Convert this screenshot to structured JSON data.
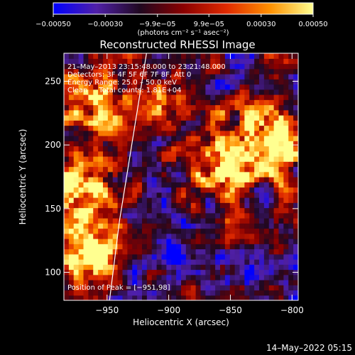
{
  "chart_data": {
    "type": "heatmap",
    "title": "Reconstructed RHESSI Image",
    "xlabel": "Heliocentric X (arcsec)",
    "ylabel": "Heliocentric Y (arcsec)",
    "xlim": [
      -985,
      -795
    ],
    "ylim": [
      78,
      272
    ],
    "x_ticks": [
      -950,
      -900,
      -850,
      -800
    ],
    "x_tick_labels": [
      "−950",
      "−900",
      "−850",
      "−800"
    ],
    "y_ticks": [
      100,
      150,
      200,
      250
    ],
    "y_tick_labels": [
      "100",
      "150",
      "200",
      "250"
    ],
    "colorbar": {
      "vmin": -0.0005,
      "vmax": 0.0005,
      "ticks": [
        -0.0005,
        -0.0003,
        -9.9e-05,
        9.9e-05,
        0.0003,
        0.0005
      ],
      "tick_labels": [
        "−0.00050",
        "−0.00030",
        "−9.9e−05",
        "9.9e−05",
        "0.00030",
        "0.00050"
      ],
      "unit_label": "(photons cm⁻² s⁻¹ asec⁻²)",
      "colors": [
        "#0000ff",
        "#5020a8",
        "#200820",
        "#8a0000",
        "#e02a00",
        "#ff9000",
        "#ffff90"
      ]
    },
    "annotations": [
      "21–May–2013 23:15:48.000 to 23:21:48.000",
      "Detectors: 3F 4F 5F 6F 7F 8F, Att 0",
      "Energy Range: 25.0 – 50.0 keV",
      "Clean     Total counts: 1.81E+04"
    ],
    "peak_label": "Position of Peak = [−951,98]",
    "peak_position": [
      -951,
      98
    ],
    "limb_curve": [
      [
        -948,
        78
      ],
      [
        -940,
        140
      ],
      [
        -930,
        200
      ],
      [
        -918,
        272
      ]
    ],
    "grid": false,
    "bright_sources": [
      {
        "x": -962,
        "y": 112,
        "sigma": 14,
        "amp": 1.0
      },
      {
        "x": -972,
        "y": 160,
        "sigma": 22,
        "amp": 0.7
      },
      {
        "x": -960,
        "y": 235,
        "sigma": 22,
        "amp": 0.6
      },
      {
        "x": -820,
        "y": 205,
        "sigma": 24,
        "amp": 0.8
      },
      {
        "x": -860,
        "y": 180,
        "sigma": 18,
        "amp": 0.6
      },
      {
        "x": -900,
        "y": 230,
        "sigma": 16,
        "amp": 0.45
      }
    ]
  },
  "footer": {
    "timestamp": "14–May–2022 05:15"
  }
}
